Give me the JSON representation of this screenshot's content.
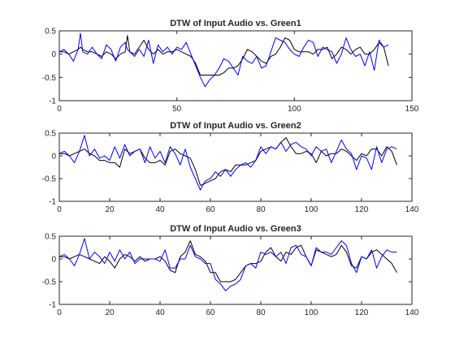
{
  "chart_data": [
    {
      "type": "line",
      "title": "DTW of Input Audio vs. Green1",
      "xlabel": "",
      "ylabel": "",
      "xlim": [
        0,
        150
      ],
      "ylim": [
        -1,
        0.5
      ],
      "xticks": [
        0,
        50,
        100,
        150
      ],
      "yticks": [
        -1,
        -0.5,
        0,
        0.5
      ],
      "xtick_labels": [
        "0",
        "50",
        "100",
        "150"
      ],
      "ytick_labels": [
        "-1",
        "-0.5",
        "0",
        "0.5"
      ],
      "grid": false,
      "series": [
        {
          "color": "#000000",
          "x": [
            0,
            2,
            4,
            6,
            8,
            9,
            10,
            12,
            14,
            16,
            18,
            20,
            22,
            24,
            26,
            28,
            29,
            30,
            32,
            34,
            36,
            38,
            40,
            42,
            44,
            46,
            48,
            50,
            52,
            54,
            56,
            58,
            60,
            62,
            64,
            66,
            68,
            70,
            72,
            74,
            76,
            78,
            80,
            82,
            84,
            86,
            88,
            90,
            92,
            94,
            96,
            98,
            100,
            102,
            104,
            106,
            108,
            110,
            112,
            114,
            116,
            118,
            120,
            122,
            124,
            126,
            128,
            130,
            132,
            134,
            136,
            138,
            140
          ],
          "y": [
            0.05,
            0.05,
            0.0,
            0.05,
            0.1,
            0.15,
            0.1,
            0.05,
            0.05,
            0.0,
            -0.05,
            0.05,
            0.0,
            -0.1,
            0.0,
            0.05,
            0.4,
            0.05,
            0.0,
            0.15,
            0.3,
            0.1,
            0.0,
            0.1,
            0.0,
            0.05,
            0.05,
            0.1,
            0.05,
            0.0,
            -0.05,
            -0.2,
            -0.45,
            -0.45,
            -0.45,
            -0.45,
            -0.45,
            -0.4,
            -0.3,
            -0.3,
            -0.25,
            -0.1,
            0.1,
            0.05,
            -0.05,
            -0.15,
            -0.2,
            -0.05,
            0.0,
            0.15,
            0.35,
            0.3,
            0.1,
            0.05,
            0.05,
            0.05,
            0.0,
            0.1,
            0.1,
            0.15,
            -0.1,
            0.0,
            0.15,
            0.1,
            0.0,
            0.1,
            0.15,
            0.0,
            0.0,
            0.1,
            0.25,
            0.15,
            -0.25
          ]
        },
        {
          "color": "#0000ff",
          "x": [
            0,
            2,
            4,
            6,
            8,
            9,
            10,
            12,
            14,
            16,
            18,
            20,
            22,
            24,
            26,
            28,
            29,
            30,
            32,
            34,
            36,
            38,
            40,
            42,
            44,
            46,
            48,
            50,
            52,
            54,
            56,
            58,
            60,
            62,
            64,
            66,
            68,
            70,
            72,
            74,
            76,
            78,
            80,
            82,
            84,
            86,
            88,
            90,
            92,
            94,
            96,
            98,
            100,
            102,
            104,
            106,
            108,
            110,
            112,
            114,
            116,
            118,
            120,
            122,
            124,
            126,
            128,
            130,
            132,
            134,
            136,
            138,
            140
          ],
          "y": [
            0.05,
            0.1,
            0.0,
            -0.15,
            0.1,
            0.45,
            0.05,
            0.0,
            0.15,
            0.0,
            -0.1,
            0.2,
            0.1,
            -0.15,
            0.15,
            0.25,
            0.1,
            0.05,
            -0.05,
            0.1,
            -0.05,
            0.3,
            -0.2,
            0.2,
            0.05,
            0.15,
            0.0,
            0.15,
            0.1,
            0.25,
            0.0,
            -0.25,
            -0.5,
            -0.7,
            -0.55,
            -0.45,
            -0.3,
            -0.1,
            -0.15,
            -0.3,
            -0.45,
            -0.05,
            -0.15,
            -0.2,
            -0.05,
            -0.3,
            -0.25,
            0.05,
            0.35,
            0.3,
            0.25,
            0.1,
            0.0,
            -0.05,
            0.15,
            0.3,
            0.25,
            -0.05,
            0.15,
            0.1,
            0.05,
            -0.2,
            0.0,
            0.35,
            0.1,
            -0.05,
            0.0,
            -0.25,
            0.05,
            -0.35,
            0.3,
            0.15,
            0.2
          ]
        }
      ]
    },
    {
      "type": "line",
      "title": "DTW of Input Audio vs. Green2",
      "xlabel": "",
      "ylabel": "",
      "xlim": [
        0,
        140
      ],
      "ylim": [
        -1,
        0.5
      ],
      "xticks": [
        0,
        20,
        40,
        60,
        80,
        100,
        120,
        140
      ],
      "yticks": [
        -1,
        -0.5,
        0,
        0.5
      ],
      "xtick_labels": [
        "0",
        "20",
        "40",
        "60",
        "80",
        "100",
        "120",
        "140"
      ],
      "ytick_labels": [
        "-1",
        "-0.5",
        "0",
        "0.5"
      ],
      "grid": false,
      "series": [
        {
          "color": "#000000",
          "x": [
            0,
            2,
            4,
            6,
            8,
            10,
            12,
            14,
            16,
            18,
            20,
            22,
            24,
            26,
            28,
            30,
            32,
            34,
            36,
            38,
            40,
            42,
            44,
            46,
            48,
            50,
            52,
            54,
            56,
            58,
            60,
            62,
            64,
            66,
            68,
            70,
            72,
            74,
            76,
            78,
            80,
            82,
            84,
            86,
            88,
            90,
            92,
            94,
            96,
            98,
            100,
            102,
            104,
            106,
            108,
            110,
            112,
            114,
            116,
            118,
            120,
            122,
            124,
            126,
            128,
            130,
            132,
            134
          ],
          "y": [
            0.05,
            0.05,
            0.0,
            0.05,
            0.1,
            0.15,
            0.05,
            0.0,
            -0.1,
            -0.1,
            -0.15,
            -0.15,
            -0.25,
            0.15,
            0.05,
            0.1,
            0.15,
            -0.05,
            -0.15,
            -0.15,
            -0.1,
            -0.2,
            0.1,
            0.15,
            0.05,
            0.0,
            -0.05,
            -0.3,
            -0.65,
            -0.6,
            -0.55,
            -0.5,
            -0.35,
            -0.3,
            -0.35,
            -0.2,
            -0.2,
            -0.2,
            -0.15,
            -0.1,
            0.1,
            0.15,
            0.2,
            0.15,
            0.3,
            0.4,
            0.2,
            0.05,
            0.05,
            0.1,
            0.05,
            -0.15,
            0.1,
            0.0,
            0.05,
            0.05,
            0.15,
            0.1,
            0.0,
            -0.1,
            0.05,
            0.0,
            0.15,
            0.15,
            0.0,
            0.2,
            0.1,
            -0.2
          ]
        },
        {
          "color": "#0000ff",
          "x": [
            0,
            2,
            4,
            6,
            8,
            10,
            12,
            14,
            16,
            18,
            20,
            22,
            24,
            26,
            28,
            30,
            32,
            34,
            36,
            38,
            40,
            42,
            44,
            46,
            48,
            50,
            52,
            54,
            56,
            58,
            60,
            62,
            64,
            66,
            68,
            70,
            72,
            74,
            76,
            78,
            80,
            82,
            84,
            86,
            88,
            90,
            92,
            94,
            96,
            98,
            100,
            102,
            104,
            106,
            108,
            110,
            112,
            114,
            116,
            118,
            120,
            122,
            124,
            126,
            128,
            130,
            132,
            134
          ],
          "y": [
            0.05,
            0.1,
            0.0,
            -0.15,
            0.1,
            0.45,
            0.0,
            0.15,
            -0.05,
            0.0,
            -0.1,
            0.2,
            -0.05,
            0.25,
            0.0,
            0.1,
            0.15,
            -0.15,
            0.2,
            -0.05,
            0.1,
            -0.15,
            0.2,
            0.05,
            -0.2,
            0.15,
            -0.25,
            -0.5,
            -0.75,
            -0.55,
            -0.5,
            -0.35,
            -0.45,
            -0.3,
            -0.45,
            -0.3,
            -0.2,
            -0.15,
            -0.25,
            -0.1,
            0.2,
            0.05,
            0.2,
            0.15,
            0.3,
            0.1,
            0.25,
            0.3,
            0.2,
            0.15,
            0.0,
            0.2,
            0.1,
            0.15,
            -0.15,
            0.1,
            0.35,
            0.15,
            0.05,
            -0.3,
            0.0,
            -0.05,
            -0.3,
            0.2,
            -0.15,
            0.15,
            0.2,
            0.15
          ]
        }
      ]
    },
    {
      "type": "line",
      "title": "DTW of Input Audio vs. Green3",
      "xlabel": "",
      "ylabel": "",
      "xlim": [
        0,
        140
      ],
      "ylim": [
        -1,
        0.5
      ],
      "xticks": [
        0,
        20,
        40,
        60,
        80,
        100,
        120,
        140
      ],
      "yticks": [
        -1,
        -0.5,
        0,
        0.5
      ],
      "xtick_labels": [
        "0",
        "20",
        "40",
        "60",
        "80",
        "100",
        "120",
        "140"
      ],
      "ytick_labels": [
        "-1",
        "-0.5",
        "0",
        "0.5"
      ],
      "grid": false,
      "series": [
        {
          "color": "#000000",
          "x": [
            0,
            2,
            4,
            6,
            8,
            10,
            12,
            14,
            16,
            18,
            20,
            22,
            24,
            26,
            28,
            30,
            32,
            34,
            36,
            38,
            40,
            42,
            44,
            46,
            48,
            50,
            52,
            54,
            56,
            58,
            60,
            62,
            64,
            66,
            68,
            70,
            72,
            74,
            76,
            78,
            80,
            82,
            84,
            86,
            88,
            90,
            92,
            94,
            96,
            98,
            100,
            102,
            104,
            106,
            108,
            110,
            112,
            114,
            116,
            118,
            120,
            122,
            124,
            126,
            128,
            130,
            132,
            134
          ],
          "y": [
            0.05,
            0.05,
            0.0,
            0.05,
            0.1,
            0.05,
            0.0,
            -0.05,
            -0.1,
            0.05,
            -0.05,
            -0.2,
            0.0,
            0.1,
            0.05,
            -0.05,
            0.05,
            -0.05,
            0.0,
            0.0,
            0.05,
            -0.05,
            -0.25,
            -0.3,
            0.05,
            0.15,
            0.4,
            0.1,
            0.05,
            -0.05,
            -0.3,
            -0.3,
            -0.5,
            -0.5,
            -0.5,
            -0.45,
            -0.3,
            -0.15,
            -0.1,
            -0.1,
            -0.05,
            0.15,
            0.25,
            0.05,
            -0.05,
            0.15,
            0.1,
            0.25,
            0.3,
            0.05,
            -0.15,
            0.2,
            0.15,
            0.1,
            0.05,
            0.1,
            0.3,
            0.15,
            -0.15,
            -0.2,
            0.05,
            0.0,
            0.15,
            0.2,
            0.1,
            0.0,
            -0.1,
            -0.3
          ]
        },
        {
          "color": "#0000ff",
          "x": [
            0,
            2,
            4,
            6,
            8,
            10,
            12,
            14,
            16,
            18,
            20,
            22,
            24,
            26,
            28,
            30,
            32,
            34,
            36,
            38,
            40,
            42,
            44,
            46,
            48,
            50,
            52,
            54,
            56,
            58,
            60,
            62,
            64,
            66,
            68,
            70,
            72,
            74,
            76,
            78,
            80,
            82,
            84,
            86,
            88,
            90,
            92,
            94,
            96,
            98,
            100,
            102,
            104,
            106,
            108,
            110,
            112,
            114,
            116,
            118,
            120,
            122,
            124,
            126,
            128,
            130,
            132,
            134
          ],
          "y": [
            0.05,
            0.1,
            0.0,
            -0.15,
            0.1,
            0.45,
            0.0,
            0.15,
            0.05,
            -0.1,
            0.15,
            -0.05,
            0.2,
            0.0,
            0.15,
            -0.1,
            0.0,
            0.0,
            0.0,
            0.0,
            -0.05,
            0.2,
            -0.2,
            -0.2,
            0.0,
            0.0,
            0.3,
            0.05,
            0.0,
            -0.1,
            -0.1,
            -0.45,
            -0.55,
            -0.7,
            -0.6,
            -0.55,
            -0.45,
            -0.15,
            -0.1,
            -0.2,
            0.15,
            0.1,
            0.15,
            0.05,
            0.15,
            -0.1,
            0.25,
            0.3,
            0.1,
            0.05,
            -0.15,
            0.25,
            0.15,
            0.15,
            0.1,
            0.25,
            0.4,
            0.3,
            -0.1,
            -0.3,
            0.05,
            0.0,
            0.2,
            -0.2,
            0.05,
            0.2,
            0.15,
            0.15
          ]
        }
      ]
    }
  ]
}
